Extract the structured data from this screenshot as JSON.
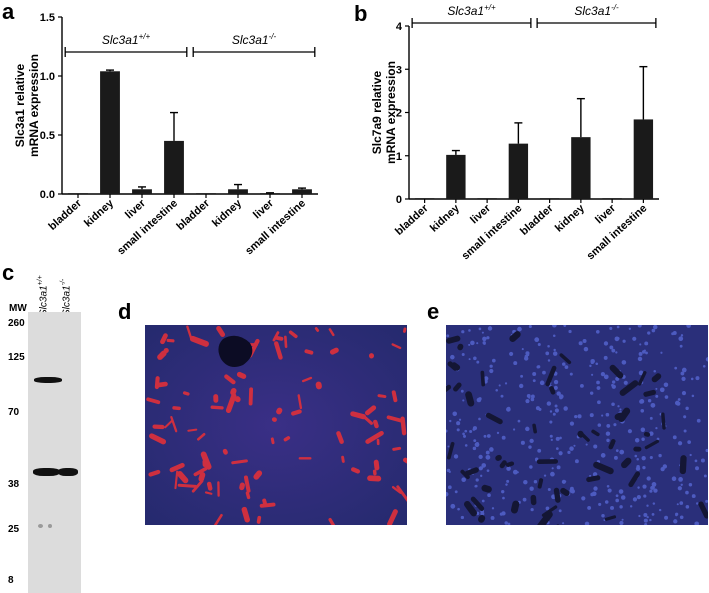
{
  "panels": {
    "a": "a",
    "b": "b",
    "c": "c",
    "d": "d",
    "e": "e"
  },
  "chart_data": [
    {
      "type": "bar",
      "ylabel_lines": [
        "Slc3a1 relative",
        "mRNA expression"
      ],
      "ylim": [
        0,
        1.5
      ],
      "yticks": [
        "0.0",
        "0.5",
        "1.0",
        "1.5"
      ],
      "ytick_values": [
        0,
        0.5,
        1.0,
        1.5
      ],
      "categories": [
        "bladder",
        "kidney",
        "liver",
        "small intestine",
        "bladder",
        "kidney",
        "liver",
        "small intestine"
      ],
      "values": [
        0.005,
        1.04,
        0.04,
        0.45,
        0.005,
        0.04,
        0.005,
        0.04
      ],
      "errors": [
        0.0,
        0.01,
        0.02,
        0.24,
        0.0,
        0.04,
        0.005,
        0.01
      ],
      "groups": [
        {
          "base": "Slc3a1",
          "sup": "+/+",
          "span": [
            0,
            3
          ]
        },
        {
          "base": "Slc3a1",
          "sup": "-/-",
          "span": [
            4,
            7
          ]
        }
      ],
      "grid": false
    },
    {
      "type": "bar",
      "ylabel_lines": [
        "Slc7a9 relative",
        "mRNA expression"
      ],
      "ylim": [
        0,
        4
      ],
      "yticks": [
        "0",
        "1",
        "2",
        "3",
        "4"
      ],
      "ytick_values": [
        0,
        1,
        2,
        3,
        4
      ],
      "categories": [
        "bladder",
        "kidney",
        "liver",
        "small intestine",
        "bladder",
        "kidney",
        "liver",
        "small intestine"
      ],
      "values": [
        0.0,
        1.02,
        0.0,
        1.28,
        0.0,
        1.43,
        0.0,
        1.84
      ],
      "errors": [
        0.0,
        0.1,
        0.0,
        0.48,
        0.0,
        0.89,
        0.0,
        1.22
      ],
      "groups": [
        {
          "base": "Slc3a1",
          "sup": "+/+",
          "span": [
            0,
            3
          ]
        },
        {
          "base": "Slc3a1",
          "sup": "-/-",
          "span": [
            4,
            7
          ]
        }
      ],
      "grid": false
    }
  ],
  "blot": {
    "mw_title": "MW",
    "markers": [
      "260",
      "125",
      "70",
      "38",
      "25",
      "8"
    ],
    "lanes": [
      {
        "base": "Slc3a1",
        "sup": "+/+"
      },
      {
        "base": "Slc3a1",
        "sup": "-/-"
      }
    ]
  },
  "colors": {
    "bar": "#1a1a1a",
    "micro_bg": "#2a2f7a",
    "micro_red": "#e0303a",
    "blot_bg": "#dcdcdc"
  }
}
